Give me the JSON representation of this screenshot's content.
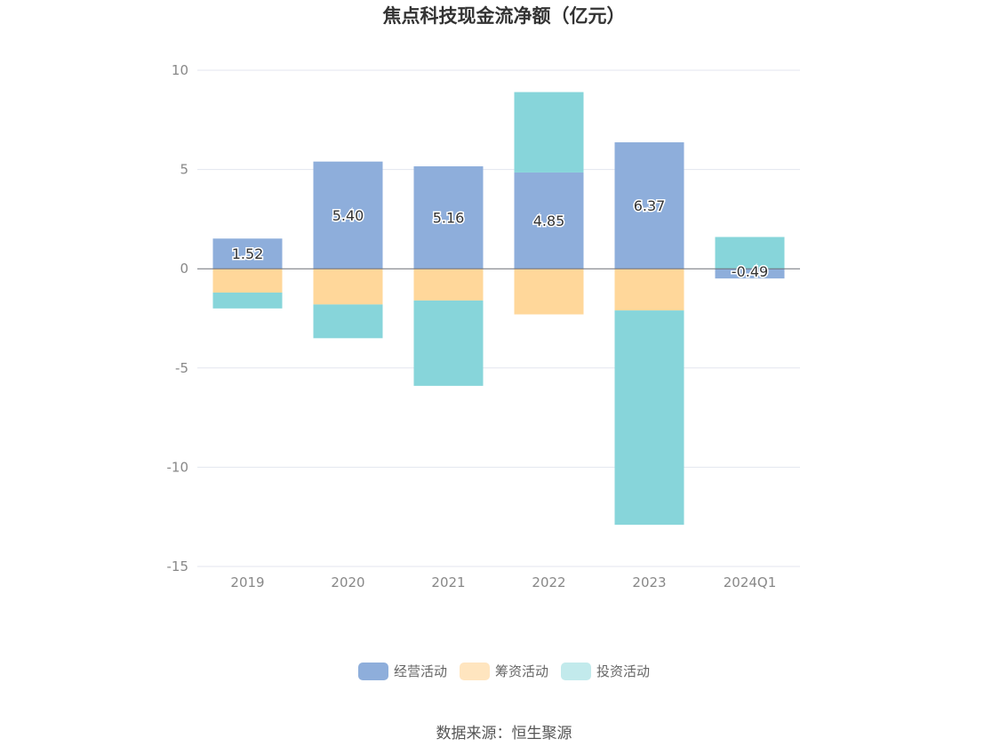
{
  "chart_data": {
    "type": "bar",
    "title": "焦点科技现金流净额（亿元）",
    "categories": [
      "2019",
      "2020",
      "2021",
      "2022",
      "2023",
      "2024Q1"
    ],
    "series": [
      {
        "name": "经营活动",
        "color": "#8eaedb",
        "values": [
          1.52,
          5.4,
          5.16,
          4.85,
          6.37,
          -0.49
        ]
      },
      {
        "name": "筹资活动",
        "color": "#ffd79a",
        "values": [
          -1.2,
          -1.8,
          -1.6,
          -2.3,
          -2.1,
          0
        ]
      },
      {
        "name": "投资活动",
        "color": "#87d5da",
        "values": [
          -0.8,
          -1.7,
          -4.3,
          4.05,
          -10.8,
          1.6
        ]
      }
    ],
    "data_labels": [
      "1.52",
      "5.40",
      "5.16",
      "4.85",
      "6.37",
      "-0.49"
    ],
    "yticks": [
      "10",
      "5",
      "0",
      "-5",
      "-10",
      "-15"
    ],
    "ylim": [
      -15,
      10
    ],
    "stacked": true,
    "grid": true,
    "legend_position": "bottom"
  },
  "legend": {
    "items": [
      {
        "label": "经营活动",
        "color": "#8eaedb"
      },
      {
        "label": "筹资活动",
        "color": "#ffe5bf"
      },
      {
        "label": "投资活动",
        "color": "#c2eaec"
      }
    ]
  },
  "source": "数据来源：恒生聚源"
}
